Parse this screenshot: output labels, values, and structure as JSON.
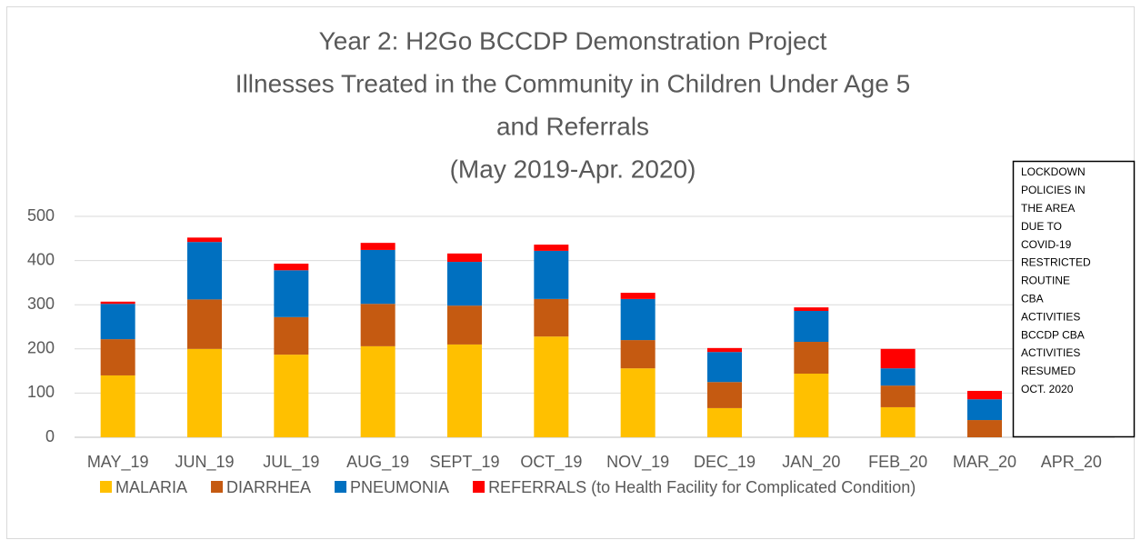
{
  "chart_data": {
    "type": "stacked_bar",
    "title": [
      "Year 2: H2Go BCCDP Demonstration Project",
      "Illnesses Treated in the Community in Children Under Age 5",
      "and Referrals",
      "(May 2019-Apr. 2020)"
    ],
    "categories": [
      "MAY_19",
      "JUN_19",
      "JUL_19",
      "AUG_19",
      "SEPT_19",
      "OCT_19",
      "NOV_19",
      "DEC_19",
      "JAN_20",
      "FEB_20",
      "MAR_20",
      "APR_20"
    ],
    "series": [
      {
        "name": "MALARIA",
        "color": "#ffc000",
        "values": [
          140,
          200,
          187,
          206,
          210,
          228,
          156,
          66,
          144,
          68,
          0,
          0
        ]
      },
      {
        "name": "DIARRHEA",
        "color": "#c55a11",
        "values": [
          82,
          112,
          85,
          96,
          88,
          85,
          64,
          59,
          72,
          49,
          39,
          0
        ]
      },
      {
        "name": "PNEUMONIA",
        "color": "#0070c0",
        "values": [
          80,
          130,
          106,
          122,
          99,
          109,
          93,
          68,
          70,
          39,
          47,
          0
        ]
      },
      {
        "name": "REFERRALS (to Health Facility for Complicated Condition)",
        "color": "#ff0000",
        "values": [
          5,
          10,
          15,
          16,
          19,
          14,
          14,
          9,
          8,
          44,
          19,
          0
        ]
      }
    ],
    "ylim": [
      0,
      500
    ],
    "yticks": [
      0,
      100,
      200,
      300,
      400,
      500
    ],
    "grid": true,
    "legend": "bottom",
    "annotation": [
      "LOCKDOWN",
      "POLICIES IN",
      "THE AREA",
      "DUE TO",
      "COVID-19",
      "RESTRICTED",
      "ROUTINE",
      "CBA",
      "ACTIVITIES",
      "BCCDP CBA",
      "ACTIVITIES",
      "RESUMED",
      "OCT. 2020"
    ]
  }
}
